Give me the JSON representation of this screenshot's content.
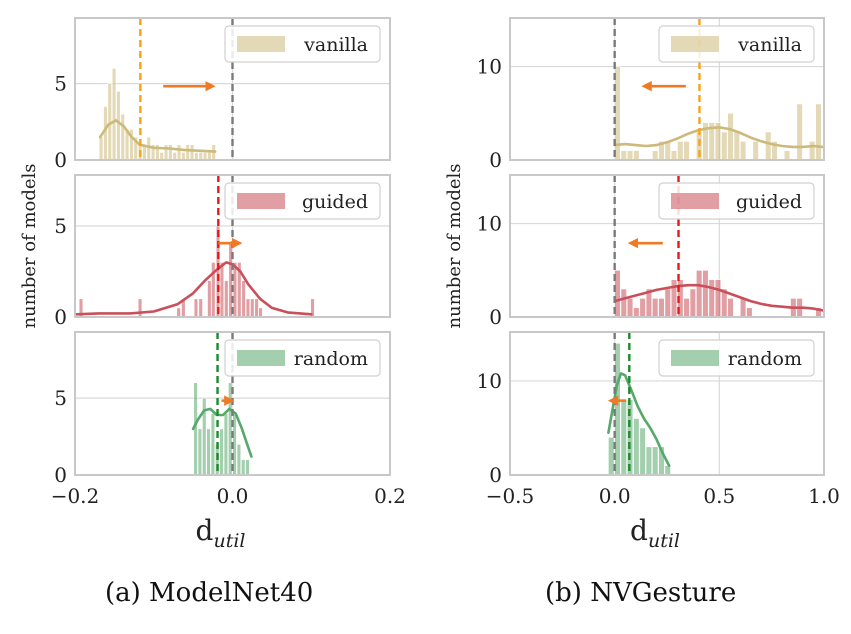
{
  "figure": {
    "captions": [
      "(a) ModelNet40",
      "(b) NVGesture"
    ]
  },
  "colors": {
    "vanilla": "#cdb97a",
    "guided": "#c9505a",
    "random": "#57a86b",
    "vanilla_mean": "#f5a31a",
    "guided_mean": "#e31a1c",
    "random_mean": "#1a8a2a",
    "zero_line": "#7a7a7a",
    "arrow": "#f07a24",
    "grid": "#d9d9d9",
    "frame": "#c8c8c8"
  },
  "chart_data": [
    {
      "type": "bar",
      "subtype": "histogram-kde-stacked",
      "title": "(a) ModelNet40",
      "xlabel": "d",
      "xlabel_sub": "util",
      "ylabel": "number of models",
      "xlim": [
        -0.2,
        0.2
      ],
      "xticks": [
        -0.2,
        0.0,
        0.2
      ],
      "xtick_labels": [
        "−0.2",
        "0.0",
        "0.2"
      ],
      "grid": true,
      "bin_width": 0.0055,
      "panels": [
        {
          "name": "vanilla",
          "ylim": [
            0,
            9.3
          ],
          "yticks": [
            0,
            5
          ],
          "mean": -0.117,
          "arrow": {
            "from": -0.088,
            "to": -0.026
          },
          "bins": [
            {
              "x": -0.1665,
              "count": 1.5
            },
            {
              "x": -0.161,
              "count": 3.5
            },
            {
              "x": -0.1555,
              "count": 5.0
            },
            {
              "x": -0.15,
              "count": 6.0
            },
            {
              "x": -0.1445,
              "count": 4.5
            },
            {
              "x": -0.139,
              "count": 3.0
            },
            {
              "x": -0.1335,
              "count": 2.0
            },
            {
              "x": -0.128,
              "count": 2.0
            },
            {
              "x": -0.1225,
              "count": 1.5
            },
            {
              "x": -0.117,
              "count": 1.0
            },
            {
              "x": -0.1115,
              "count": 1.0
            },
            {
              "x": -0.106,
              "count": 1.5
            },
            {
              "x": -0.1005,
              "count": 1.0
            },
            {
              "x": -0.095,
              "count": 1.0
            },
            {
              "x": -0.0895,
              "count": 0.5
            },
            {
              "x": -0.084,
              "count": 1.0
            },
            {
              "x": -0.0785,
              "count": 1.0
            },
            {
              "x": -0.073,
              "count": 0.5
            },
            {
              "x": -0.0675,
              "count": 1.0
            },
            {
              "x": -0.062,
              "count": 0.5
            },
            {
              "x": -0.0565,
              "count": 1.0
            },
            {
              "x": -0.051,
              "count": 1.0
            },
            {
              "x": -0.0455,
              "count": 0.5
            },
            {
              "x": -0.04,
              "count": 0.5
            },
            {
              "x": -0.0345,
              "count": 0.5
            },
            {
              "x": -0.029,
              "count": 0.5
            },
            {
              "x": -0.0235,
              "count": 1.0
            }
          ],
          "kde": [
            [
              -0.168,
              1.5
            ],
            [
              -0.158,
              2.3
            ],
            [
              -0.148,
              2.6
            ],
            [
              -0.138,
              2.2
            ],
            [
              -0.128,
              1.5
            ],
            [
              -0.118,
              1.0
            ],
            [
              -0.1,
              0.8
            ],
            [
              -0.08,
              0.75
            ],
            [
              -0.06,
              0.65
            ],
            [
              -0.04,
              0.6
            ],
            [
              -0.022,
              0.55
            ]
          ]
        },
        {
          "name": "guided",
          "ylim": [
            0,
            7.8
          ],
          "yticks": [
            0,
            5
          ],
          "mean": -0.018,
          "arrow": {
            "from": -0.018,
            "to": 0.008
          },
          "bins": [
            {
              "x": -0.192,
              "count": 1.0
            },
            {
              "x": -0.117,
              "count": 1.0
            },
            {
              "x": -0.068,
              "count": 0.5
            },
            {
              "x": -0.062,
              "count": 1.0
            },
            {
              "x": -0.046,
              "count": 1.0
            },
            {
              "x": -0.04,
              "count": 1.0
            },
            {
              "x": -0.029,
              "count": 2.0
            },
            {
              "x": -0.024,
              "count": 3.0
            },
            {
              "x": -0.018,
              "count": 5.0
            },
            {
              "x": -0.013,
              "count": 3.0
            },
            {
              "x": -0.0075,
              "count": 2.0
            },
            {
              "x": -0.002,
              "count": 4.0
            },
            {
              "x": 0.0035,
              "count": 3.0
            },
            {
              "x": 0.009,
              "count": 3.0
            },
            {
              "x": 0.0145,
              "count": 2.0
            },
            {
              "x": 0.02,
              "count": 1.0
            },
            {
              "x": 0.0255,
              "count": 1.0
            },
            {
              "x": 0.031,
              "count": 1.0
            },
            {
              "x": 0.036,
              "count": 0.5
            },
            {
              "x": 0.102,
              "count": 1.0
            }
          ],
          "kde": [
            [
              -0.198,
              0.15
            ],
            [
              -0.17,
              0.2
            ],
            [
              -0.13,
              0.2
            ],
            [
              -0.1,
              0.3
            ],
            [
              -0.07,
              0.7
            ],
            [
              -0.05,
              1.3
            ],
            [
              -0.035,
              2.0
            ],
            [
              -0.02,
              2.6
            ],
            [
              -0.008,
              3.0
            ],
            [
              0.0,
              2.9
            ],
            [
              0.01,
              2.5
            ],
            [
              0.02,
              1.8
            ],
            [
              0.035,
              1.0
            ],
            [
              0.05,
              0.5
            ],
            [
              0.07,
              0.25
            ],
            [
              0.1,
              0.15
            ]
          ]
        },
        {
          "name": "random",
          "ylim": [
            0,
            9.3
          ],
          "yticks": [
            0,
            5
          ],
          "mean": -0.019,
          "arrow": {
            "from": -0.014,
            "to": -0.002
          },
          "bins": [
            {
              "x": -0.0465,
              "count": 6.0
            },
            {
              "x": -0.041,
              "count": 3.0
            },
            {
              "x": -0.0355,
              "count": 5.0
            },
            {
              "x": -0.03,
              "count": 3.0
            },
            {
              "x": -0.0245,
              "count": 4.0
            },
            {
              "x": -0.019,
              "count": 2.0
            },
            {
              "x": -0.0135,
              "count": 3.0
            },
            {
              "x": -0.008,
              "count": 4.0
            },
            {
              "x": -0.0025,
              "count": 6.0
            },
            {
              "x": 0.003,
              "count": 4.0
            },
            {
              "x": 0.0085,
              "count": 2.0
            },
            {
              "x": 0.014,
              "count": 1.0
            },
            {
              "x": 0.0195,
              "count": 1.0
            }
          ],
          "kde": [
            [
              -0.05,
              3.0
            ],
            [
              -0.044,
              3.6
            ],
            [
              -0.036,
              4.2
            ],
            [
              -0.028,
              4.3
            ],
            [
              -0.02,
              3.9
            ],
            [
              -0.012,
              3.9
            ],
            [
              -0.004,
              4.3
            ],
            [
              0.004,
              4.0
            ],
            [
              0.012,
              3.0
            ],
            [
              0.02,
              1.8
            ],
            [
              0.024,
              1.2
            ]
          ]
        }
      ]
    },
    {
      "type": "bar",
      "subtype": "histogram-kde-stacked",
      "title": "(b) NVGesture",
      "xlabel": "d",
      "xlabel_sub": "util",
      "ylabel": "number of models",
      "xlim": [
        -0.5,
        1.0
      ],
      "xticks": [
        -0.5,
        0.0,
        0.5,
        1.0
      ],
      "xtick_labels": [
        "−0.5",
        "0.0",
        "0.5",
        "1.0"
      ],
      "grid": true,
      "bin_width": 0.03,
      "panels": [
        {
          "name": "vanilla",
          "ylim": [
            0,
            15.2
          ],
          "yticks": [
            0,
            10
          ],
          "mean": 0.405,
          "arrow": {
            "from": 0.34,
            "to": 0.145
          },
          "bins": [
            {
              "x": 0.015,
              "count": 10.0
            },
            {
              "x": 0.045,
              "count": 1.0
            },
            {
              "x": 0.075,
              "count": 1.0
            },
            {
              "x": 0.105,
              "count": 1.0
            },
            {
              "x": 0.195,
              "count": 1.0
            },
            {
              "x": 0.225,
              "count": 2.0
            },
            {
              "x": 0.255,
              "count": 2.0
            },
            {
              "x": 0.285,
              "count": 1.0
            },
            {
              "x": 0.315,
              "count": 2.0
            },
            {
              "x": 0.345,
              "count": 2.0
            },
            {
              "x": 0.405,
              "count": 3.0
            },
            {
              "x": 0.435,
              "count": 4.0
            },
            {
              "x": 0.465,
              "count": 4.0
            },
            {
              "x": 0.495,
              "count": 4.0
            },
            {
              "x": 0.525,
              "count": 3.0
            },
            {
              "x": 0.555,
              "count": 5.0
            },
            {
              "x": 0.585,
              "count": 3.0
            },
            {
              "x": 0.615,
              "count": 2.0
            },
            {
              "x": 0.675,
              "count": 2.0
            },
            {
              "x": 0.735,
              "count": 3.0
            },
            {
              "x": 0.765,
              "count": 2.0
            },
            {
              "x": 0.825,
              "count": 1.0
            },
            {
              "x": 0.885,
              "count": 6.0
            },
            {
              "x": 0.945,
              "count": 2.0
            },
            {
              "x": 0.975,
              "count": 6.0
            }
          ],
          "kde": [
            [
              0.0,
              1.6
            ],
            [
              0.05,
              1.7
            ],
            [
              0.1,
              1.6
            ],
            [
              0.15,
              1.5
            ],
            [
              0.2,
              1.6
            ],
            [
              0.25,
              1.9
            ],
            [
              0.3,
              2.3
            ],
            [
              0.35,
              2.8
            ],
            [
              0.4,
              3.2
            ],
            [
              0.45,
              3.4
            ],
            [
              0.5,
              3.5
            ],
            [
              0.55,
              3.3
            ],
            [
              0.6,
              2.9
            ],
            [
              0.65,
              2.4
            ],
            [
              0.7,
              2.0
            ],
            [
              0.75,
              1.7
            ],
            [
              0.8,
              1.5
            ],
            [
              0.85,
              1.4
            ],
            [
              0.9,
              1.4
            ],
            [
              0.95,
              1.5
            ],
            [
              0.995,
              1.4
            ]
          ]
        },
        {
          "name": "guided",
          "ylim": [
            0,
            15.2
          ],
          "yticks": [
            0,
            10
          ],
          "mean": 0.305,
          "arrow": {
            "from": 0.23,
            "to": 0.08
          },
          "bins": [
            {
              "x": 0.015,
              "count": 5.0
            },
            {
              "x": 0.045,
              "count": 3.0
            },
            {
              "x": 0.075,
              "count": 2.0
            },
            {
              "x": 0.105,
              "count": 1.0
            },
            {
              "x": 0.135,
              "count": 2.0
            },
            {
              "x": 0.165,
              "count": 3.0
            },
            {
              "x": 0.195,
              "count": 2.0
            },
            {
              "x": 0.225,
              "count": 2.0
            },
            {
              "x": 0.255,
              "count": 3.0
            },
            {
              "x": 0.285,
              "count": 4.0
            },
            {
              "x": 0.315,
              "count": 4.0
            },
            {
              "x": 0.345,
              "count": 2.0
            },
            {
              "x": 0.375,
              "count": 3.0
            },
            {
              "x": 0.405,
              "count": 5.0
            },
            {
              "x": 0.435,
              "count": 5.0
            },
            {
              "x": 0.465,
              "count": 4.0
            },
            {
              "x": 0.495,
              "count": 4.0
            },
            {
              "x": 0.525,
              "count": 3.0
            },
            {
              "x": 0.555,
              "count": 2.0
            },
            {
              "x": 0.615,
              "count": 2.0
            },
            {
              "x": 0.645,
              "count": 1.0
            },
            {
              "x": 0.855,
              "count": 2.0
            },
            {
              "x": 0.885,
              "count": 2.0
            },
            {
              "x": 0.975,
              "count": 1.0
            }
          ],
          "kde": [
            [
              0.0,
              1.7
            ],
            [
              0.05,
              2.0
            ],
            [
              0.1,
              2.3
            ],
            [
              0.15,
              2.6
            ],
            [
              0.2,
              2.9
            ],
            [
              0.25,
              3.1
            ],
            [
              0.3,
              3.3
            ],
            [
              0.35,
              3.4
            ],
            [
              0.4,
              3.4
            ],
            [
              0.45,
              3.2
            ],
            [
              0.5,
              2.9
            ],
            [
              0.55,
              2.5
            ],
            [
              0.6,
              2.1
            ],
            [
              0.65,
              1.7
            ],
            [
              0.7,
              1.4
            ],
            [
              0.75,
              1.2
            ],
            [
              0.8,
              1.1
            ],
            [
              0.85,
              1.0
            ],
            [
              0.9,
              1.0
            ],
            [
              0.95,
              0.9
            ],
            [
              0.995,
              0.7
            ]
          ]
        },
        {
          "name": "random",
          "ylim": [
            0,
            15.2
          ],
          "yticks": [
            0,
            10
          ],
          "mean": 0.07,
          "arrow": {
            "from": 0.055,
            "to": -0.015
          },
          "bins": [
            {
              "x": -0.015,
              "count": 4.0
            },
            {
              "x": 0.015,
              "count": 14.0
            },
            {
              "x": 0.045,
              "count": 8.0
            },
            {
              "x": 0.075,
              "count": 8.0
            },
            {
              "x": 0.105,
              "count": 6.0
            },
            {
              "x": 0.135,
              "count": 5.0
            },
            {
              "x": 0.165,
              "count": 3.0
            },
            {
              "x": 0.195,
              "count": 3.0
            },
            {
              "x": 0.225,
              "count": 3.0
            },
            {
              "x": 0.255,
              "count": 1.0
            }
          ],
          "kde": [
            [
              -0.03,
              4.5
            ],
            [
              -0.01,
              7.0
            ],
            [
              0.01,
              9.5
            ],
            [
              0.03,
              10.8
            ],
            [
              0.05,
              10.6
            ],
            [
              0.08,
              9.0
            ],
            [
              0.11,
              7.3
            ],
            [
              0.14,
              6.0
            ],
            [
              0.17,
              5.0
            ],
            [
              0.2,
              3.8
            ],
            [
              0.23,
              2.3
            ],
            [
              0.26,
              1.0
            ]
          ]
        }
      ]
    }
  ]
}
